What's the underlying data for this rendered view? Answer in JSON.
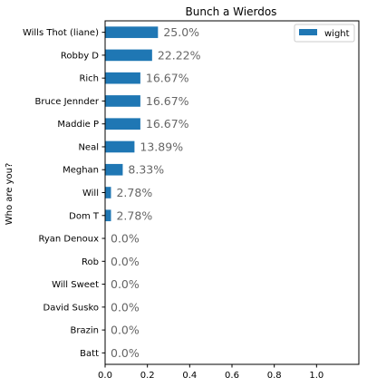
{
  "chart_data": {
    "type": "bar",
    "orientation": "horizontal",
    "title": "Bunch a Wierdos",
    "xlabel": "",
    "ylabel": "Who are you?",
    "categories": [
      "Wills Thot (liane)",
      "Robby D",
      "Rich",
      "Bruce Jennder",
      "Maddie P",
      "Neal",
      "Meghan",
      "Will",
      "Dom T",
      "Ryan Denoux",
      "Rob",
      "Will Sweet",
      "David Susko",
      "Brazin",
      "Batt"
    ],
    "series": [
      {
        "name": "wight",
        "color": "#1f77b4",
        "values": [
          0.25,
          0.2222,
          0.1667,
          0.1667,
          0.1667,
          0.1389,
          0.0833,
          0.0278,
          0.0278,
          0.0,
          0.0,
          0.0,
          0.0,
          0.0,
          0.0
        ],
        "data_labels": [
          "25.0%",
          "22.22%",
          "16.67%",
          "16.67%",
          "16.67%",
          "13.89%",
          "8.33%",
          "2.78%",
          "2.78%",
          "0.0%",
          "0.0%",
          "0.0%",
          "0.0%",
          "0.0%",
          "0.0%"
        ]
      }
    ],
    "xlim": [
      0,
      1.2
    ],
    "xticks": [
      0.0,
      0.2,
      0.4,
      0.6,
      0.8,
      1.0
    ],
    "xtick_labels": [
      "0.0",
      "0.2",
      "0.4",
      "0.6",
      "0.8",
      "1.0"
    ],
    "legend": "top-right",
    "grid": false
  }
}
